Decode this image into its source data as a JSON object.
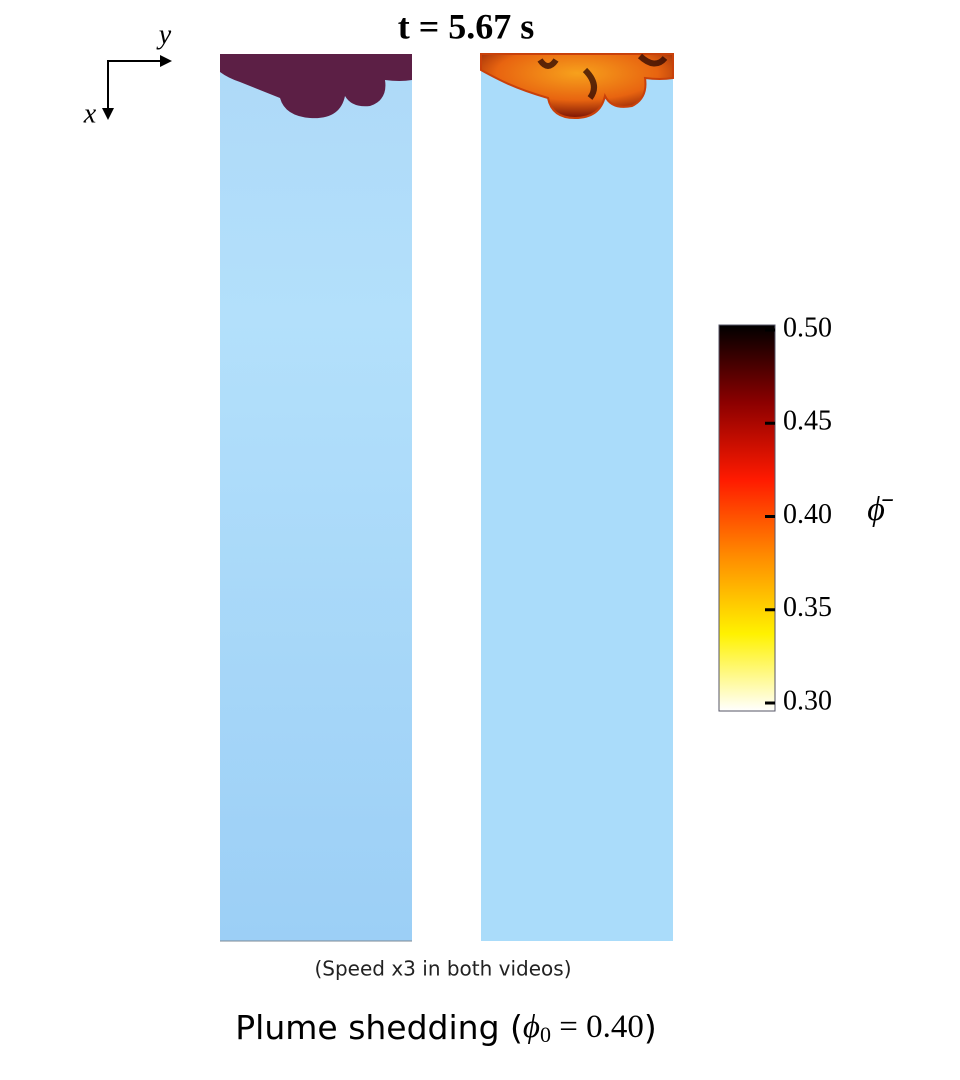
{
  "title": "t = 5.67 s",
  "axes": {
    "horizontal": "y",
    "vertical": "x"
  },
  "colorbar": {
    "label": "ϕ̄",
    "lim": [
      0.3,
      0.5
    ],
    "ticks": [
      {
        "value": 0.5,
        "label": "0.50"
      },
      {
        "value": 0.45,
        "label": "0.45"
      },
      {
        "value": 0.4,
        "label": "0.40"
      },
      {
        "value": 0.35,
        "label": "0.35"
      },
      {
        "value": 0.3,
        "label": "0.30"
      }
    ],
    "colors": [
      "#ffffff",
      "#fff200",
      "#ff8c00",
      "#ff1a00",
      "#8b0000",
      "#000000"
    ]
  },
  "note": "(Speed x3 in both videos)",
  "caption": {
    "prefix": "Plume shedding (",
    "symbol": "ϕ",
    "subscript": "0",
    "equation": " = 0.40",
    "suffix": ")"
  }
}
